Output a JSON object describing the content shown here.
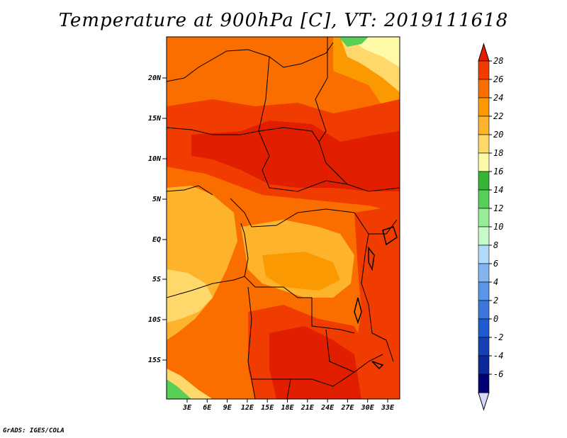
{
  "title": "Temperature at 900hPa [C], VT: 2019111618",
  "credit": "GrADS: IGES/COLA",
  "map": {
    "region": "Central Africa",
    "lat_labels": [
      "20N",
      "15N",
      "10N",
      "5N",
      "EQ",
      "5S",
      "10S",
      "15S"
    ],
    "lon_labels": [
      "3E",
      "6E",
      "9E",
      "12E",
      "15E",
      "18E",
      "21E",
      "24E",
      "27E",
      "30E",
      "33E"
    ]
  },
  "colorbar": {
    "labels": [
      "28",
      "26",
      "24",
      "22",
      "20",
      "18",
      "16",
      "14",
      "12",
      "10",
      "8",
      "6",
      "4",
      "2",
      "0",
      "-2",
      "-4",
      "-6"
    ],
    "colors": [
      "#e11f00",
      "#f03c00",
      "#fa6e00",
      "#fb9a00",
      "#fdb42c",
      "#fed86b",
      "#fffaa8",
      "#34b634",
      "#58d058",
      "#96ed96",
      "#c8fac8",
      "#b0dcfa",
      "#82b4f0",
      "#5a96e6",
      "#3c78dc",
      "#1e5ad2",
      "#1440b4",
      "#0a2896",
      "#000078",
      "#d6d6fa"
    ]
  },
  "colors": {
    "very_hot": "#e11f00",
    "hot": "#f03c00",
    "warm": "#fa6e00",
    "mild_warm": "#fb9a00",
    "mild": "#fdb42c",
    "cool": "#fed86b",
    "cooler": "#fffaa8",
    "green": "#58d058"
  }
}
